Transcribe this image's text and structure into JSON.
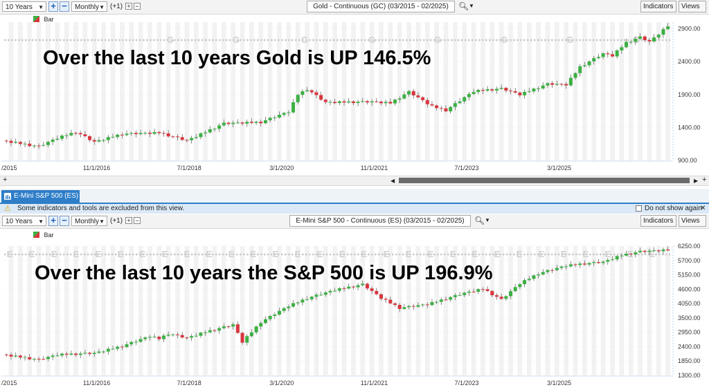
{
  "top_toolbar": {
    "period": "10 Years",
    "interval": "Monthly",
    "shift": "(+1)",
    "title": "Gold - Continuous (GC) (03/2015 - 02/2025)",
    "indicators": "Indicators",
    "views": "Views"
  },
  "top_chart": {
    "legend": "Bar",
    "headline": "Over the last 10 years Gold is UP 146.5%",
    "event_marker": "G",
    "y_ticks": [
      "2900.00",
      "2400.00",
      "1900.00",
      "1400.00",
      "900.00"
    ],
    "x_ticks": [
      "/2015",
      "11/1/2016",
      "7/1/2018",
      "3/1/2020",
      "11/1/2021",
      "7/1/2023",
      "3/1/2025"
    ]
  },
  "tab": {
    "label": "E-Mini S&P 500 (ES)"
  },
  "warning": {
    "text": "Some indicators and tools are excluded from this view.",
    "checkbox_label": "Do not show again"
  },
  "bottom_toolbar": {
    "period": "10 Years",
    "interval": "Monthly",
    "shift": "(+1)",
    "title": "E-Mini S&P 500 - Continuous (ES) (03/2015 - 02/2025)",
    "indicators": "Indicators",
    "views": "Views"
  },
  "bottom_chart": {
    "legend": "Bar",
    "headline": "Over the last 10 years the S&P 500 is UP 196.9%",
    "event_marker": "E",
    "y_ticks": [
      "6250.00",
      "5700.00",
      "5150.00",
      "4600.00",
      "4050.00",
      "3500.00",
      "2950.00",
      "2400.00",
      "1850.00",
      "1300.00"
    ],
    "x_ticks": [
      "/2015",
      "11/1/2016",
      "7/1/2018",
      "3/1/2020",
      "11/1/2021",
      "7/1/2023",
      "3/1/2025"
    ]
  },
  "colors": {
    "up": "#3cb043",
    "down": "#d9363e",
    "accent": "#2e7ec8"
  },
  "chart_data": [
    {
      "type": "candlestick",
      "title": "Gold - Continuous (GC) (03/2015 - 02/2025)",
      "ylim": [
        900,
        3000
      ],
      "x": "monthly 03/2015 - 02/2025",
      "anchors": [
        [
          0,
          1200
        ],
        [
          8,
          1110
        ],
        [
          12,
          1240
        ],
        [
          16,
          1330
        ],
        [
          20,
          1180
        ],
        [
          26,
          1300
        ],
        [
          34,
          1320
        ],
        [
          40,
          1200
        ],
        [
          48,
          1460
        ],
        [
          56,
          1480
        ],
        [
          62,
          1640
        ],
        [
          64,
          1900
        ],
        [
          66,
          1980
        ],
        [
          70,
          1780
        ],
        [
          80,
          1790
        ],
        [
          84,
          1770
        ],
        [
          88,
          1940
        ],
        [
          93,
          1720
        ],
        [
          96,
          1660
        ],
        [
          102,
          1950
        ],
        [
          108,
          1990
        ],
        [
          112,
          1900
        ],
        [
          118,
          2060
        ],
        [
          122,
          2050
        ],
        [
          125,
          2320
        ],
        [
          130,
          2520
        ],
        [
          132,
          2490
        ],
        [
          135,
          2690
        ],
        [
          138,
          2770
        ],
        [
          140,
          2700
        ],
        [
          144,
          2940
        ]
      ]
    },
    {
      "type": "candlestick",
      "title": "E-Mini S&P 500 - Continuous (ES) (03/2015 - 02/2025)",
      "ylim": [
        1300,
        6250
      ],
      "x": "monthly 03/2015 - 02/2025",
      "anchors": [
        [
          0,
          2100
        ],
        [
          8,
          1900
        ],
        [
          12,
          2090
        ],
        [
          20,
          2150
        ],
        [
          26,
          2420
        ],
        [
          32,
          2800
        ],
        [
          34,
          2700
        ],
        [
          36,
          2900
        ],
        [
          40,
          2730
        ],
        [
          44,
          2960
        ],
        [
          50,
          3240
        ],
        [
          52,
          2580
        ],
        [
          56,
          3340
        ],
        [
          62,
          3960
        ],
        [
          66,
          4250
        ],
        [
          72,
          4570
        ],
        [
          78,
          4780
        ],
        [
          82,
          4260
        ],
        [
          86,
          3880
        ],
        [
          92,
          4020
        ],
        [
          100,
          4450
        ],
        [
          104,
          4610
        ],
        [
          108,
          4200
        ],
        [
          112,
          4820
        ],
        [
          116,
          5200
        ],
        [
          122,
          5500
        ],
        [
          126,
          5580
        ],
        [
          130,
          5640
        ],
        [
          134,
          5900
        ],
        [
          138,
          6040
        ],
        [
          144,
          6100
        ]
      ]
    }
  ]
}
